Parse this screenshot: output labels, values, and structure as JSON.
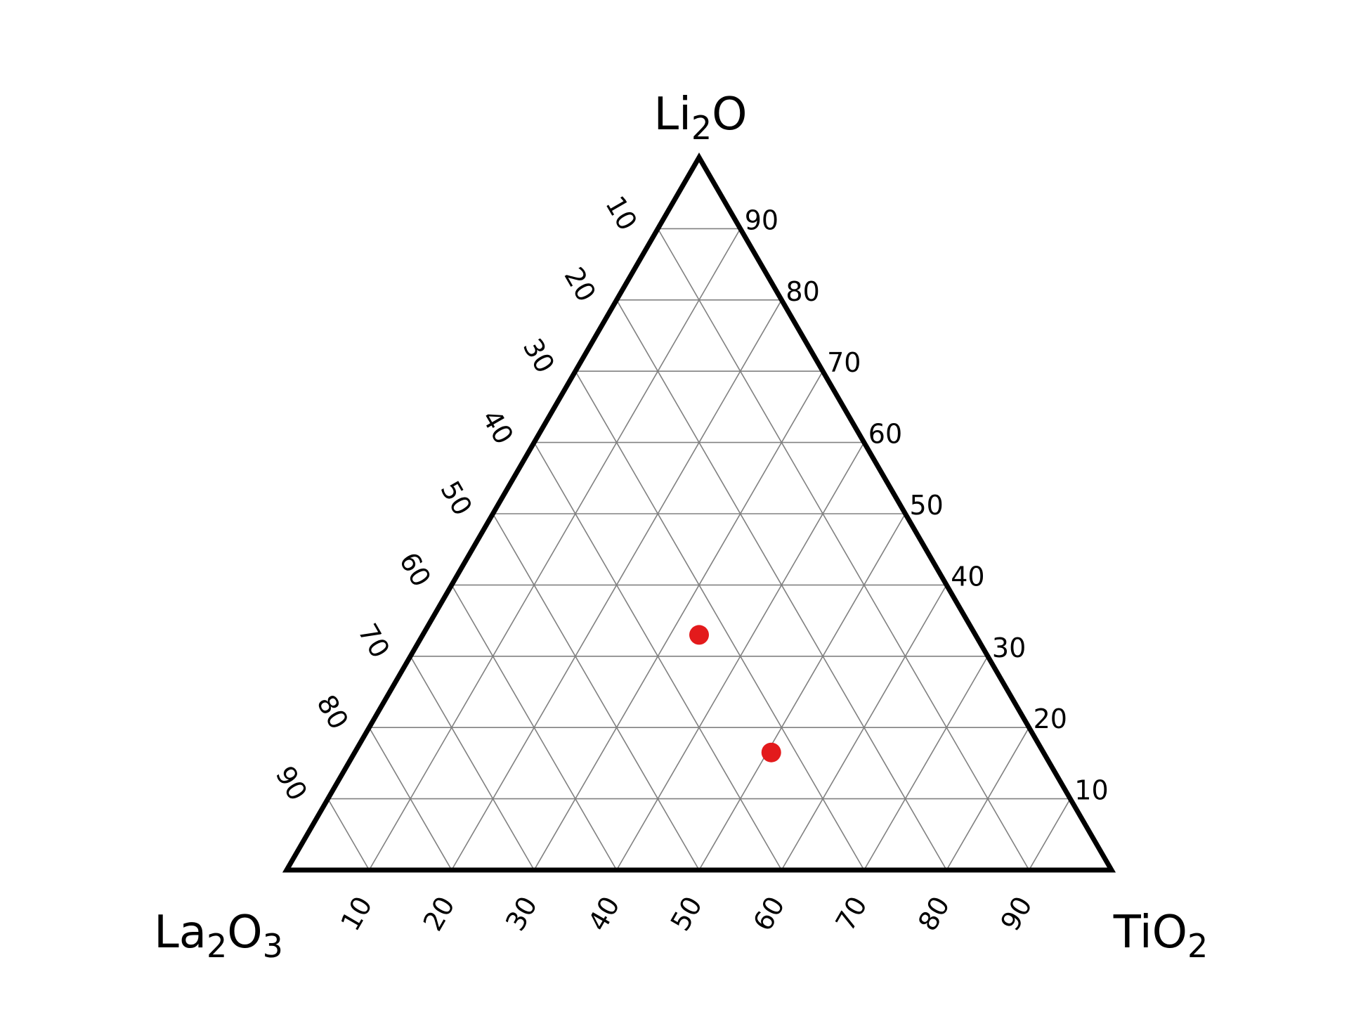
{
  "chart_data": {
    "type": "scatter",
    "subtype": "ternary",
    "grid": true,
    "grid_step": 10,
    "axes": {
      "top": {
        "label": "Li",
        "sub1": "2",
        "label2": "O",
        "ticks": [
          "90",
          "80",
          "70",
          "60",
          "50",
          "40",
          "30",
          "20",
          "10"
        ]
      },
      "left": {
        "label": "La",
        "sub1": "2",
        "label2": "O",
        "sub2": "3",
        "ticks": [
          "10",
          "20",
          "30",
          "40",
          "50",
          "60",
          "70",
          "80",
          "90"
        ]
      },
      "right": {
        "label": "TiO",
        "sub1": "2",
        "label2": ""
      },
      "bottom_ticks": [
        "10",
        "20",
        "30",
        "40",
        "50",
        "60",
        "70",
        "80",
        "90"
      ]
    },
    "series": [
      {
        "color": "#e31a1c",
        "points": [
          {
            "Li2O": 33,
            "La2O3": 33.5,
            "TiO2": 33.5
          },
          {
            "Li2O": 16.5,
            "La2O3": 33,
            "TiO2": 50.5
          }
        ]
      }
    ]
  }
}
